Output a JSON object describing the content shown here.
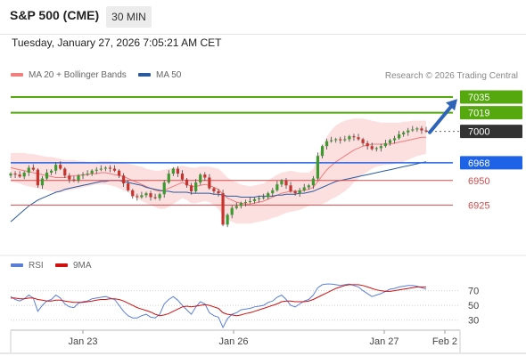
{
  "header": {
    "title": "S&P 500 (CME)",
    "timeframe": "30 MIN",
    "datetime": "Tuesday, January 27, 2026 7:05:21 AM CET"
  },
  "legend": {
    "items": [
      {
        "label": "MA 20 + Bollinger Bands",
        "color": "#f08080"
      },
      {
        "label": "MA 50",
        "color": "#2a5a9e"
      }
    ],
    "credit": "Research © 2026 Trading Central"
  },
  "rsi_legend": {
    "items": [
      {
        "label": "RSI",
        "color": "#5b7fd6"
      },
      {
        "label": "9MA",
        "color": "#d11010"
      }
    ]
  },
  "chart_data": [
    {
      "type": "candlestick",
      "title": "",
      "ylim": [
        6880,
        7045
      ],
      "x_ticks": [
        "Jan 23",
        "Jan 26",
        "Jan 27",
        "Feb 2"
      ],
      "levels": [
        {
          "value": 7035,
          "label": "7035",
          "kind": "resistance",
          "color": "#55a80e"
        },
        {
          "value": 7019,
          "label": "7019",
          "kind": "resistance",
          "color": "#55a80e"
        },
        {
          "value": 7000,
          "label": "7000",
          "kind": "current-price",
          "color": "#333333"
        },
        {
          "value": 6968,
          "label": "6968",
          "kind": "pivot",
          "color": "#1e63e6"
        },
        {
          "value": 6950,
          "label": "6950",
          "kind": "support",
          "color": "#d44a4a"
        },
        {
          "value": 6925,
          "label": "6925",
          "kind": "support",
          "color": "#d44a4a"
        }
      ],
      "closes": [
        6957,
        6956,
        6954,
        6958,
        6963,
        6961,
        6945,
        6952,
        6958,
        6960,
        6966,
        6962,
        6955,
        6951,
        6950,
        6955,
        6956,
        6957,
        6960,
        6961,
        6962,
        6963,
        6962,
        6960,
        6955,
        6947,
        6940,
        6934,
        6933,
        6935,
        6937,
        6933,
        6932,
        6936,
        6948,
        6957,
        6962,
        6957,
        6951,
        6945,
        6939,
        6948,
        6956,
        6953,
        6942,
        6939,
        6937,
        6905,
        6915,
        6922,
        6924,
        6927,
        6928,
        6929,
        6931,
        6932,
        6933,
        6937,
        6940,
        6946,
        6950,
        6945,
        6939,
        6937,
        6940,
        6943,
        6945,
        6952,
        6975,
        6985,
        6990,
        6991,
        6992,
        6991,
        6992,
        6995,
        6994,
        6992,
        6988,
        6985,
        6982,
        6983,
        6985,
        6988,
        6991,
        6993,
        6997,
        6999,
        7001,
        7002,
        7003,
        7001,
        7000
      ],
      "ma20": [
        6963,
        6962,
        6961,
        6960,
        6959,
        6958,
        6957,
        6956,
        6955,
        6954,
        6953,
        6953,
        6953,
        6954,
        6955,
        6955,
        6956,
        6956,
        6957,
        6957,
        6958,
        6958,
        6957,
        6956,
        6955,
        6954,
        6952,
        6950,
        6948,
        6946,
        6944,
        6942,
        6940,
        6939,
        6940,
        6942,
        6944,
        6946,
        6948,
        6946,
        6944,
        6944,
        6945,
        6946,
        6945,
        6943,
        6941,
        6936,
        6932,
        6930,
        6928,
        6927,
        6926,
        6926,
        6927,
        6928,
        6929,
        6931,
        6933,
        6935,
        6937,
        6938,
        6939,
        6939,
        6939,
        6940,
        6941,
        6943,
        6949,
        6955,
        6961,
        6965,
        6969,
        6972,
        6975,
        6978,
        6981,
        6983,
        6985,
        6986,
        6987,
        6987,
        6987,
        6987,
        6987,
        6988,
        6989,
        6990,
        6991,
        6992,
        6993,
        6994,
        6994
      ],
      "bb_upper": [
        6978,
        6978,
        6978,
        6978,
        6977,
        6977,
        6976,
        6975,
        6974,
        6974,
        6973,
        6972,
        6971,
        6971,
        6971,
        6970,
        6970,
        6969,
        6969,
        6969,
        6970,
        6970,
        6970,
        6969,
        6969,
        6968,
        6967,
        6966,
        6965,
        6964,
        6962,
        6961,
        6960,
        6960,
        6961,
        6962,
        6963,
        6964,
        6965,
        6964,
        6963,
        6963,
        6964,
        6964,
        6964,
        6963,
        6962,
        6958,
        6953,
        6950,
        6948,
        6946,
        6945,
        6944,
        6945,
        6946,
        6947,
        6950,
        6953,
        6956,
        6958,
        6959,
        6960,
        6959,
        6958,
        6958,
        6958,
        6962,
        6974,
        6985,
        6995,
        7001,
        7006,
        7009,
        7011,
        7012,
        7013,
        7013,
        7013,
        7012,
        7011,
        7010,
        7009,
        7009,
        7009,
        7009,
        7009,
        7010,
        7010,
        7011,
        7011,
        7011,
        7011
      ],
      "bb_lower": [
        6949,
        6948,
        6947,
        6945,
        6944,
        6943,
        6942,
        6941,
        6940,
        6939,
        6938,
        6938,
        6939,
        6940,
        6941,
        6942,
        6943,
        6944,
        6945,
        6946,
        6946,
        6946,
        6945,
        6944,
        6942,
        6940,
        6938,
        6935,
        6932,
        6929,
        6927,
        6925,
        6923,
        6921,
        6921,
        6923,
        6926,
        6929,
        6932,
        6930,
        6927,
        6927,
        6928,
        6929,
        6928,
        6925,
        6921,
        6914,
        6910,
        6908,
        6906,
        6906,
        6906,
        6906,
        6907,
        6908,
        6909,
        6910,
        6912,
        6913,
        6915,
        6917,
        6918,
        6919,
        6920,
        6922,
        6924,
        6925,
        6925,
        6926,
        6928,
        6931,
        6933,
        6936,
        6939,
        6943,
        6948,
        6952,
        6956,
        6959,
        6962,
        6964,
        6965,
        6966,
        6966,
        6967,
        6968,
        6969,
        6971,
        6973,
        6975,
        6976,
        6977
      ],
      "ma50": [
        6908,
        6912,
        6916,
        6920,
        6924,
        6927,
        6930,
        6932,
        6934,
        6936,
        6938,
        6939,
        6941,
        6942,
        6943,
        6944,
        6945,
        6946,
        6947,
        6948,
        6949,
        6949,
        6950,
        6950,
        6950,
        6949,
        6948,
        6947,
        6946,
        6945,
        6943,
        6942,
        6941,
        6940,
        6939,
        6939,
        6938,
        6938,
        6938,
        6938,
        6937,
        6937,
        6937,
        6937,
        6937,
        6936,
        6936,
        6935,
        6934,
        6934,
        6934,
        6933,
        6933,
        6933,
        6933,
        6934,
        6934,
        6934,
        6934,
        6935,
        6935,
        6936,
        6936,
        6936,
        6937,
        6937,
        6938,
        6939,
        6941,
        6943,
        6945,
        6947,
        6949,
        6950,
        6951,
        6952,
        6953,
        6954,
        6955,
        6956,
        6957,
        6958,
        6959,
        6960,
        6961,
        6962,
        6963,
        6964,
        6965,
        6966,
        6967,
        6968,
        6969
      ]
    },
    {
      "type": "line",
      "title": "",
      "ylim": [
        20,
        90
      ],
      "y_ticks": [
        30,
        50,
        70
      ],
      "series": [
        {
          "name": "RSI",
          "values": [
            62,
            58,
            56,
            59,
            64,
            60,
            42,
            50,
            56,
            58,
            64,
            60,
            52,
            48,
            47,
            53,
            55,
            56,
            59,
            60,
            61,
            62,
            60,
            58,
            50,
            42,
            36,
            33,
            33,
            36,
            38,
            34,
            33,
            38,
            52,
            58,
            62,
            57,
            50,
            44,
            38,
            48,
            55,
            52,
            40,
            36,
            34,
            20,
            32,
            38,
            40,
            44,
            45,
            46,
            48,
            49,
            50,
            54,
            56,
            61,
            64,
            58,
            50,
            48,
            52,
            56,
            58,
            64,
            74,
            78,
            79,
            79,
            78,
            77,
            78,
            79,
            77,
            75,
            70,
            66,
            62,
            64,
            66,
            69,
            72,
            73,
            75,
            76,
            77,
            77,
            76,
            74,
            72
          ]
        },
        {
          "name": "9MA",
          "values": [
            60,
            60,
            59,
            59,
            60,
            60,
            58,
            57,
            56,
            56,
            57,
            57,
            56,
            55,
            54,
            54,
            54,
            55,
            56,
            57,
            58,
            58,
            59,
            59,
            58,
            56,
            53,
            50,
            47,
            45,
            43,
            41,
            38,
            36,
            37,
            39,
            42,
            45,
            48,
            49,
            48,
            49,
            50,
            51,
            50,
            48,
            46,
            40,
            38,
            37,
            36,
            37,
            39,
            40,
            42,
            44,
            46,
            48,
            50,
            52,
            55,
            56,
            56,
            55,
            55,
            55,
            56,
            58,
            61,
            64,
            67,
            70,
            73,
            75,
            77,
            78,
            78,
            78,
            77,
            75,
            73,
            71,
            70,
            69,
            69,
            70,
            71,
            72,
            73,
            74,
            75,
            75,
            75
          ]
        }
      ]
    }
  ]
}
